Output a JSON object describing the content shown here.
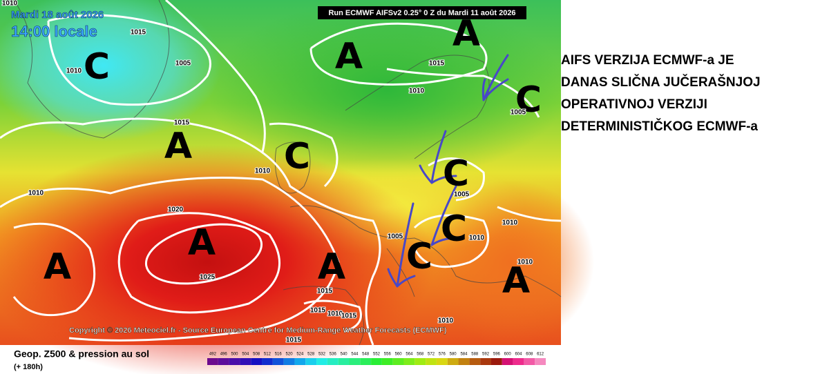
{
  "header": {
    "date": "Mardi 18 août 2026",
    "time": "14:00 locale",
    "run": "Run ECMWF AIFSv2 0.25° 0 Z du Mardi 11 août 2026"
  },
  "centers": [
    "A",
    "A",
    "C",
    "C",
    "A",
    "C",
    "C",
    "C",
    "C",
    "A",
    "A",
    "A",
    "A"
  ],
  "isobar_labels": [
    1010,
    1015,
    1010,
    1005,
    1015,
    1010,
    1005,
    1015,
    1010,
    1010,
    1020,
    1005,
    1010,
    1005,
    1010,
    1025,
    1015,
    1015,
    1010,
    1015,
    1010,
    1015,
    1010
  ],
  "copyright": "Copyright © 2026 Meteociel.fr - Source European Centre for Medium-Range Weather Forecasts (ECMWF)",
  "footer": {
    "title": "Geop. Z500 & pression au sol",
    "lead": "(+ 180h)"
  },
  "legend": {
    "values": [
      492,
      496,
      500,
      504,
      508,
      512,
      516,
      520,
      524,
      528,
      532,
      536,
      540,
      544,
      548,
      552,
      556,
      560,
      564,
      568,
      572,
      576,
      580,
      584,
      588,
      592,
      596,
      600,
      604,
      608,
      612
    ]
  },
  "annotation": [
    "AIFS VERZIJA ECMWF-a JE",
    "DANAS SLIČNA JUČERAŠNJOJ",
    "OPERATIVNOJ VERZIJI",
    "DETERMINISTIČKOG ECMWF-a"
  ]
}
